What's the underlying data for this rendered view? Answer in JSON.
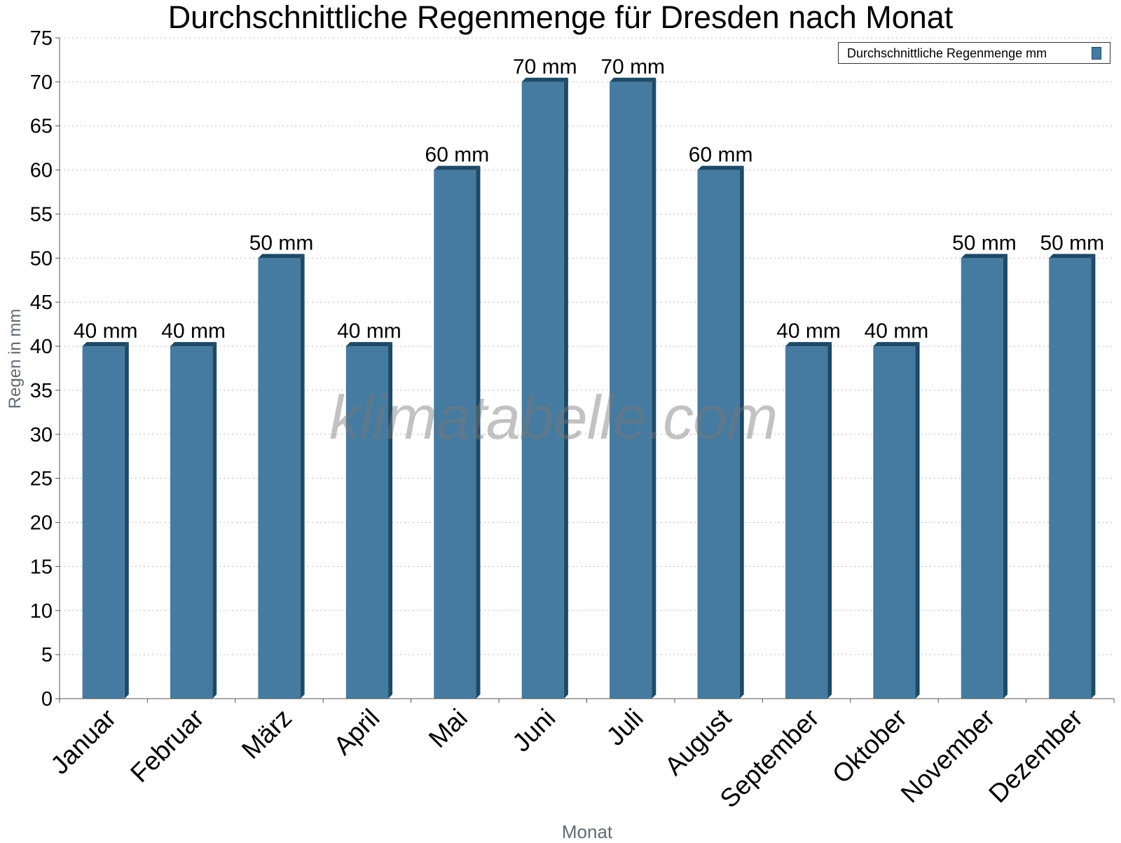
{
  "chart_data": {
    "type": "bar",
    "title": "Durchschnittliche Regenmenge für Dresden nach Monat",
    "xlabel": "Monat",
    "ylabel": "Regen in mm",
    "categories": [
      "Januar",
      "Februar",
      "März",
      "April",
      "Mai",
      "Juni",
      "Juli",
      "August",
      "September",
      "Oktober",
      "November",
      "Dezember"
    ],
    "series": [
      {
        "name": "Durchschnittliche Regenmenge mm",
        "values": [
          40,
          40,
          50,
          40,
          60,
          70,
          70,
          60,
          40,
          40,
          50,
          50
        ]
      }
    ],
    "data_labels": [
      "40 mm",
      "40 mm",
      "50 mm",
      "40 mm",
      "60 mm",
      "70 mm",
      "70 mm",
      "60 mm",
      "40 mm",
      "40 mm",
      "50 mm",
      "50 mm"
    ],
    "ylim": [
      0,
      75
    ],
    "yticks": [
      0,
      5,
      10,
      15,
      20,
      25,
      30,
      35,
      40,
      45,
      50,
      55,
      60,
      65,
      70,
      75
    ],
    "grid": true,
    "legend_position": "top-right",
    "bar_color": "#457ba0",
    "bar_edge_color": "#1d4a66",
    "watermark": "klimatabelle.com"
  }
}
